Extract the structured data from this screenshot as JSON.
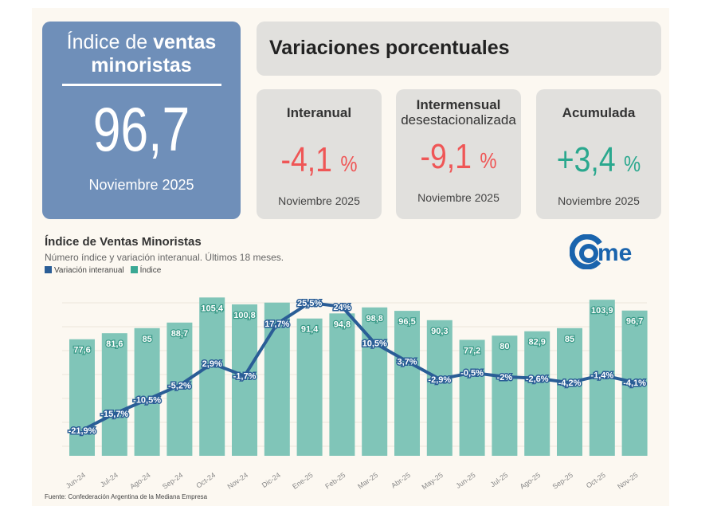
{
  "main": {
    "title_light": "Índice de ",
    "title_bold": "ventas",
    "title_line2": "minoristas",
    "value": "96,7",
    "date": "Noviembre 2025"
  },
  "header": {
    "title": "Variaciones porcentuales"
  },
  "cards": [
    {
      "title": "Interanual",
      "title2": "",
      "value": "-4,1",
      "unit": "%",
      "date": "Noviembre 2025",
      "color": "#ef5656"
    },
    {
      "title": "Intermensual",
      "title2": "desestacionalizada",
      "value": "-9,1",
      "unit": "%",
      "date": "Noviembre 2025",
      "color": "#ef5656"
    },
    {
      "title": "Acumulada",
      "title2": "",
      "value": "+3,4",
      "unit": "%",
      "date": "Noviembre 2025",
      "color": "#2aa88e"
    }
  ],
  "logo": {
    "text": "came",
    "color": "#1a64ad"
  },
  "source": "Fuente: Confederación Argentina de la Mediana Empresa",
  "chart_data": {
    "type": "bar+line",
    "title": "Índice de Ventas Minoristas",
    "subtitle": "Número índice y variación interanual. Últimos 18 meses.",
    "legend": [
      {
        "name": "Variación interanual",
        "color": "#2a5d96"
      },
      {
        "name": "Índice",
        "color": "#7fc6b9"
      }
    ],
    "legend_placement": "top-left",
    "grid": true,
    "categories": [
      "Jun-24",
      "Jul-24",
      "Ago-24",
      "Sep-24",
      "Oct-24",
      "Nov-24",
      "Dic-24",
      "Ene-25",
      "Feb-25",
      "Mar-25",
      "Abr-25",
      "May-25",
      "Jun-25",
      "Jul-25",
      "Ago-25",
      "Sep-25",
      "Oct-25",
      "Nov-25"
    ],
    "series": [
      {
        "name": "Índice",
        "type": "bar",
        "values": [
          77.6,
          81.6,
          85,
          88.7,
          105.4,
          100.8,
          102,
          91.4,
          94.8,
          98.8,
          96.5,
          90.3,
          77.2,
          80,
          82.9,
          85,
          103.9,
          96.7
        ],
        "labels": [
          "77,6",
          "81,6",
          "85",
          "88,7",
          "105,4",
          "100,8",
          "",
          "91,4",
          "94,8",
          "98,8",
          "96,5",
          "90,3",
          "77,2",
          "80",
          "82,9",
          "85",
          "103,9",
          "96,7"
        ]
      },
      {
        "name": "Variación interanual",
        "type": "line",
        "values": [
          -21.9,
          -15.7,
          -10.5,
          -5.2,
          2.9,
          -1.7,
          17.7,
          25.5,
          24,
          10.5,
          3.7,
          -2.9,
          -0.5,
          -2,
          -2.6,
          -4.2,
          -1.4,
          -4.1
        ],
        "labels": [
          "-21,9%",
          "-15,7%",
          "-10,5%",
          "-5,2%",
          "2,9%",
          "-1,7%",
          "17,7%",
          "25,5%",
          "24%",
          "10,5%",
          "3,7%",
          "-2,9%",
          "-0,5%",
          "-2%",
          "-2,6%",
          "-4,2%",
          "-1,4%",
          "-4,1%"
        ]
      }
    ]
  }
}
